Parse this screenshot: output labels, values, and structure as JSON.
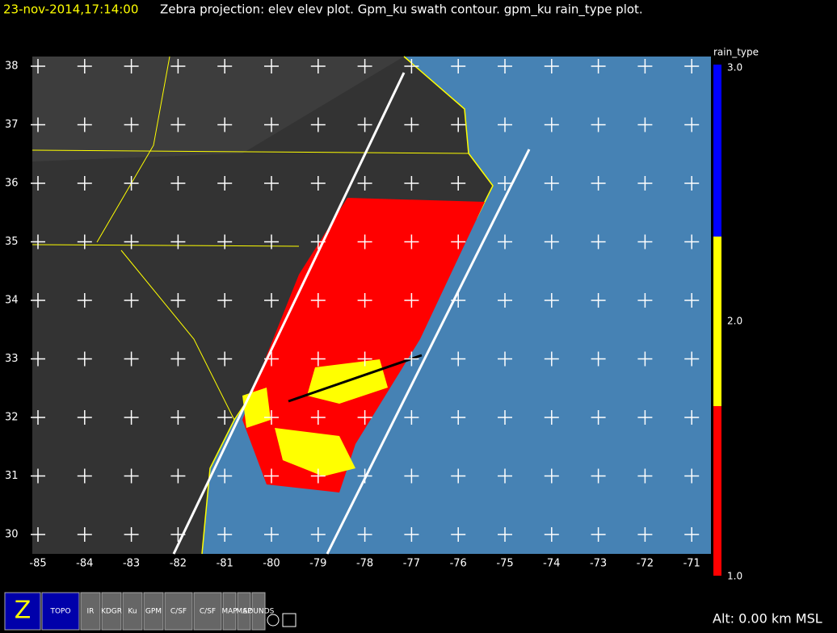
{
  "header": {
    "time": "23-nov-2014,17:14:00",
    "title": "Zebra projection: elev elev  plot.  Gpm_ku swath contour.  gpm_ku rain_type  plot."
  },
  "map": {
    "lat_ticks": [
      "38",
      "37",
      "36",
      "35",
      "34",
      "33",
      "32",
      "31",
      "30"
    ],
    "lon_ticks": [
      "-85",
      "-84",
      "-83",
      "-82",
      "-81",
      "-80",
      "-79",
      "-78",
      "-77",
      "-76",
      "-75",
      "-74",
      "-73",
      "-72",
      "-71"
    ]
  },
  "colorbar": {
    "title": "rain_type",
    "ticks": [
      "3.0",
      "2.0",
      "1.0"
    ]
  },
  "toolbar": {
    "buttons": [
      "Z",
      "TOPO",
      "IR",
      "KDGR",
      "Ku",
      "GPM",
      "C/SF",
      "C/SF",
      "MAP",
      "MAP",
      "SOUNDS"
    ]
  },
  "status": "Alt: 0.00 km MSL"
}
